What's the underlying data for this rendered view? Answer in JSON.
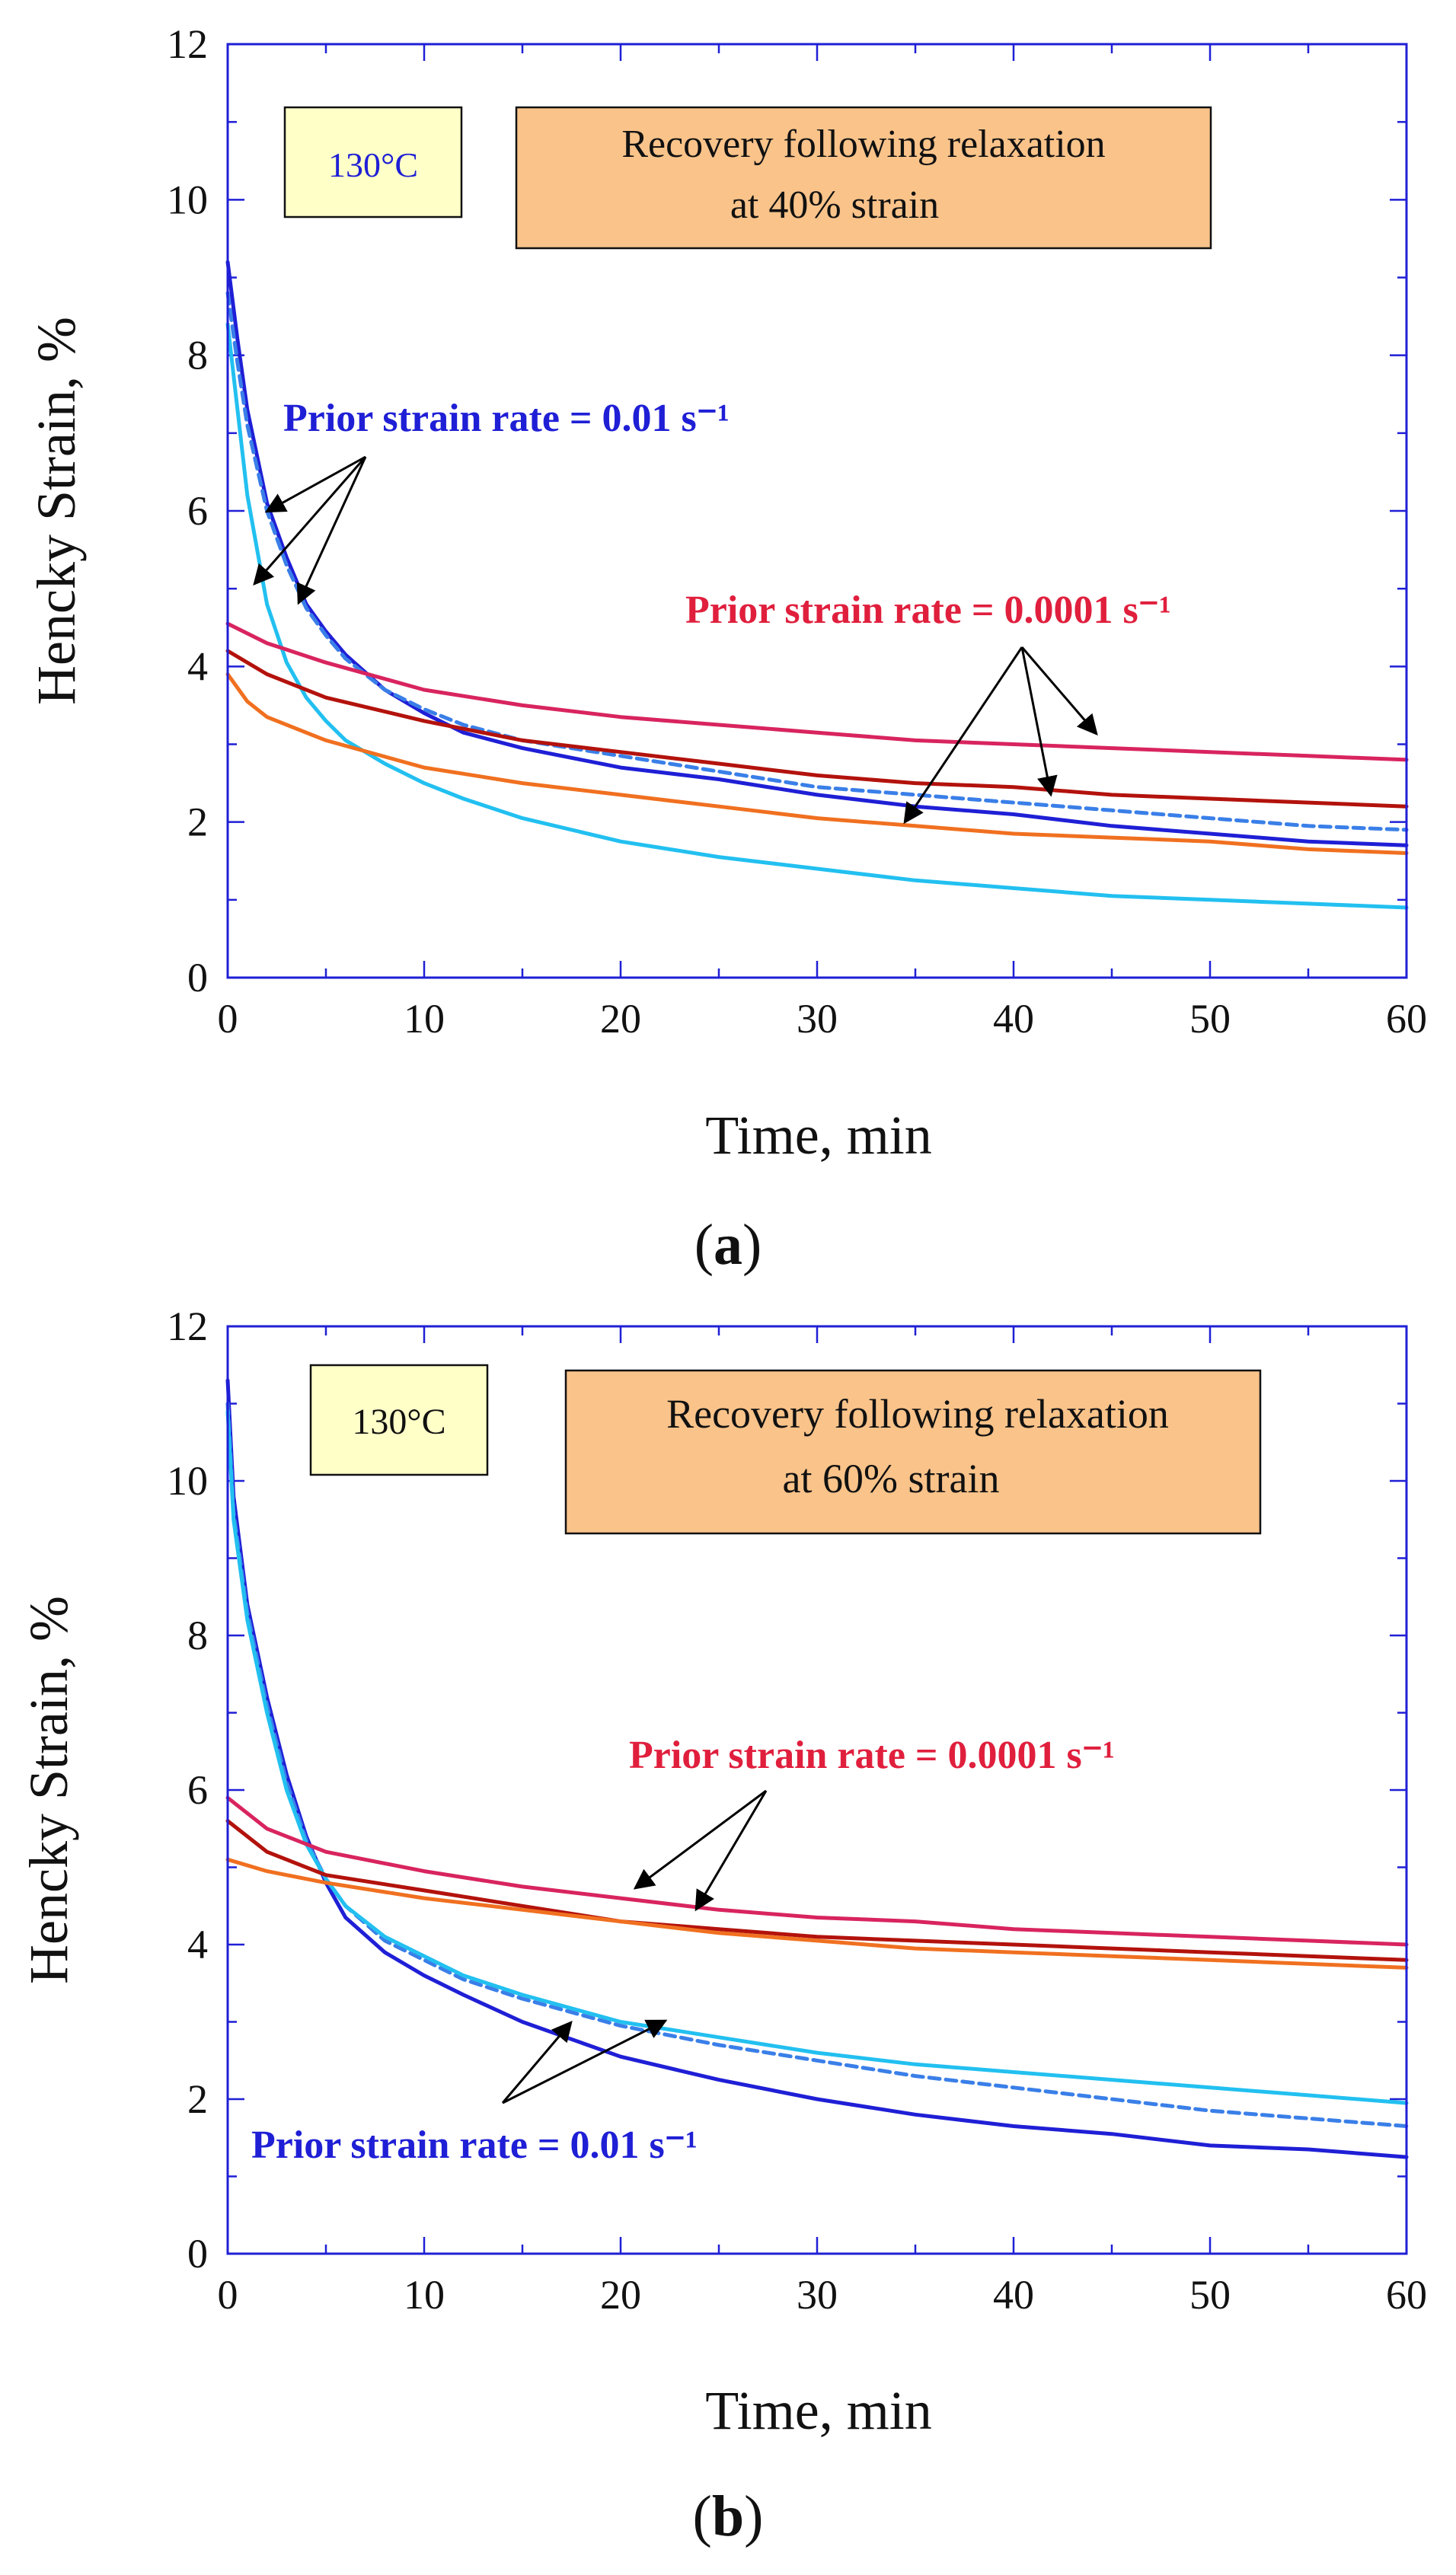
{
  "colors": {
    "axis": "#1f1fd6",
    "tick_text": "#111111",
    "red_label": "#e01f3d",
    "blue_label": "#1f1fd6",
    "temp_box": "#ffffc8",
    "note_box": "#f9c38a",
    "s_dark_blue": "#1f1fd6",
    "s_dashed_blue": "#3a7fe8",
    "s_cyan": "#22c0f0",
    "s_crimson": "#d8245f",
    "s_dark_red": "#b3120c",
    "s_orange": "#f07020"
  },
  "chart_data": [
    {
      "type": "line",
      "panel_label": "(a)",
      "xlabel": "Time, min",
      "ylabel": "Hencky Strain, %",
      "xlim": [
        0,
        60
      ],
      "ylim": [
        0,
        12
      ],
      "xticks": [
        0,
        10,
        20,
        30,
        40,
        50,
        60
      ],
      "yticks": [
        0,
        2,
        4,
        6,
        8,
        10,
        12
      ],
      "temp_label": "130°C",
      "note_line1": "Recovery following relaxation",
      "note_line2": "at 40% strain",
      "label_fast": "Prior strain rate = 0.01 s⁻¹",
      "label_slow": "Prior strain rate = 0.0001 s⁻¹",
      "series": [
        {
          "color_key": "s_dark_blue",
          "dash": false,
          "x": [
            0,
            0.5,
            1,
            2,
            3,
            4,
            5,
            6,
            8,
            10,
            12,
            15,
            20,
            25,
            30,
            35,
            40,
            45,
            50,
            55,
            60
          ],
          "y": [
            9.2,
            8.2,
            7.3,
            6.1,
            5.4,
            4.8,
            4.45,
            4.15,
            3.7,
            3.4,
            3.15,
            2.95,
            2.7,
            2.55,
            2.35,
            2.2,
            2.1,
            1.95,
            1.85,
            1.75,
            1.7
          ]
        },
        {
          "color_key": "s_dashed_blue",
          "dash": true,
          "x": [
            0,
            0.5,
            1,
            2,
            3,
            4,
            5,
            6,
            8,
            10,
            12,
            15,
            20,
            25,
            30,
            35,
            40,
            45,
            50,
            55,
            60
          ],
          "y": [
            8.8,
            7.9,
            7.1,
            6.0,
            5.3,
            4.75,
            4.4,
            4.1,
            3.7,
            3.45,
            3.25,
            3.05,
            2.85,
            2.65,
            2.45,
            2.35,
            2.25,
            2.15,
            2.05,
            1.95,
            1.9
          ]
        },
        {
          "color_key": "s_cyan",
          "dash": false,
          "x": [
            0,
            0.5,
            1,
            2,
            3,
            4,
            5,
            6,
            8,
            10,
            12,
            15,
            20,
            25,
            30,
            35,
            40,
            45,
            50,
            55,
            60
          ],
          "y": [
            8.4,
            7.3,
            6.2,
            4.8,
            4.05,
            3.6,
            3.3,
            3.05,
            2.75,
            2.5,
            2.3,
            2.05,
            1.75,
            1.55,
            1.4,
            1.25,
            1.15,
            1.05,
            1.0,
            0.95,
            0.9
          ]
        },
        {
          "color_key": "s_crimson",
          "dash": false,
          "x": [
            0,
            2,
            5,
            10,
            15,
            20,
            25,
            30,
            35,
            40,
            45,
            50,
            55,
            60
          ],
          "y": [
            4.55,
            4.3,
            4.05,
            3.7,
            3.5,
            3.35,
            3.25,
            3.15,
            3.05,
            3.0,
            2.95,
            2.9,
            2.85,
            2.8
          ]
        },
        {
          "color_key": "s_dark_red",
          "dash": false,
          "x": [
            0,
            2,
            5,
            10,
            15,
            20,
            25,
            30,
            35,
            40,
            45,
            50,
            55,
            60
          ],
          "y": [
            4.2,
            3.9,
            3.6,
            3.3,
            3.05,
            2.9,
            2.75,
            2.6,
            2.5,
            2.45,
            2.35,
            2.3,
            2.25,
            2.2
          ]
        },
        {
          "color_key": "s_orange",
          "dash": false,
          "x": [
            0,
            1,
            2,
            5,
            10,
            15,
            20,
            25,
            30,
            35,
            40,
            45,
            50,
            55,
            60
          ],
          "y": [
            3.9,
            3.55,
            3.35,
            3.05,
            2.7,
            2.5,
            2.35,
            2.2,
            2.05,
            1.95,
            1.85,
            1.8,
            1.75,
            1.65,
            1.6
          ]
        }
      ]
    },
    {
      "type": "line",
      "panel_label": "(b)",
      "xlabel": "Time, min",
      "ylabel": "Hencky Strain, %",
      "xlim": [
        0,
        60
      ],
      "ylim": [
        0,
        12
      ],
      "xticks": [
        0,
        10,
        20,
        30,
        40,
        50,
        60
      ],
      "yticks": [
        0,
        2,
        4,
        6,
        8,
        10,
        12
      ],
      "temp_label": "130°C",
      "note_line1": "Recovery following relaxation",
      "note_line2": "at 60% strain",
      "label_fast": "Prior strain rate = 0.01 s⁻¹",
      "label_slow": "Prior strain rate = 0.0001 s⁻¹",
      "series": [
        {
          "color_key": "s_dark_blue",
          "dash": false,
          "x": [
            0,
            0.3,
            1,
            2,
            3,
            4,
            5,
            6,
            8,
            10,
            12,
            15,
            20,
            25,
            30,
            35,
            40,
            45,
            50,
            55,
            60
          ],
          "y": [
            11.3,
            9.8,
            8.4,
            7.2,
            6.2,
            5.4,
            4.8,
            4.35,
            3.9,
            3.6,
            3.35,
            3.0,
            2.55,
            2.25,
            2.0,
            1.8,
            1.65,
            1.55,
            1.4,
            1.35,
            1.25
          ]
        },
        {
          "color_key": "s_dashed_blue",
          "dash": true,
          "x": [
            0,
            0.3,
            1,
            2,
            3,
            4,
            5,
            6,
            8,
            10,
            12,
            15,
            20,
            25,
            30,
            35,
            40,
            45,
            50,
            55,
            60
          ],
          "y": [
            11.0,
            9.6,
            8.3,
            7.1,
            6.1,
            5.35,
            4.85,
            4.5,
            4.05,
            3.8,
            3.55,
            3.3,
            2.95,
            2.7,
            2.5,
            2.3,
            2.15,
            2.0,
            1.85,
            1.75,
            1.65
          ]
        },
        {
          "color_key": "s_cyan",
          "dash": false,
          "x": [
            0,
            0.3,
            1,
            2,
            3,
            4,
            5,
            6,
            8,
            10,
            12,
            15,
            20,
            25,
            30,
            35,
            40,
            45,
            50,
            55,
            60
          ],
          "y": [
            10.9,
            9.5,
            8.2,
            7.0,
            6.0,
            5.3,
            4.85,
            4.5,
            4.1,
            3.85,
            3.6,
            3.35,
            3.0,
            2.8,
            2.6,
            2.45,
            2.35,
            2.25,
            2.15,
            2.05,
            1.95
          ]
        },
        {
          "color_key": "s_crimson",
          "dash": false,
          "x": [
            0,
            2,
            5,
            10,
            15,
            20,
            25,
            30,
            35,
            40,
            45,
            50,
            55,
            60
          ],
          "y": [
            5.9,
            5.5,
            5.2,
            4.95,
            4.75,
            4.6,
            4.45,
            4.35,
            4.3,
            4.2,
            4.15,
            4.1,
            4.05,
            4.0
          ]
        },
        {
          "color_key": "s_dark_red",
          "dash": false,
          "x": [
            0,
            2,
            5,
            10,
            15,
            20,
            25,
            30,
            35,
            40,
            45,
            50,
            55,
            60
          ],
          "y": [
            5.6,
            5.2,
            4.9,
            4.7,
            4.5,
            4.3,
            4.2,
            4.1,
            4.05,
            4.0,
            3.95,
            3.9,
            3.85,
            3.8
          ]
        },
        {
          "color_key": "s_orange",
          "dash": false,
          "x": [
            0,
            2,
            5,
            10,
            15,
            20,
            25,
            30,
            35,
            40,
            45,
            50,
            55,
            60
          ],
          "y": [
            5.1,
            4.95,
            4.8,
            4.6,
            4.45,
            4.3,
            4.15,
            4.05,
            3.95,
            3.9,
            3.85,
            3.8,
            3.75,
            3.7
          ]
        }
      ]
    }
  ]
}
